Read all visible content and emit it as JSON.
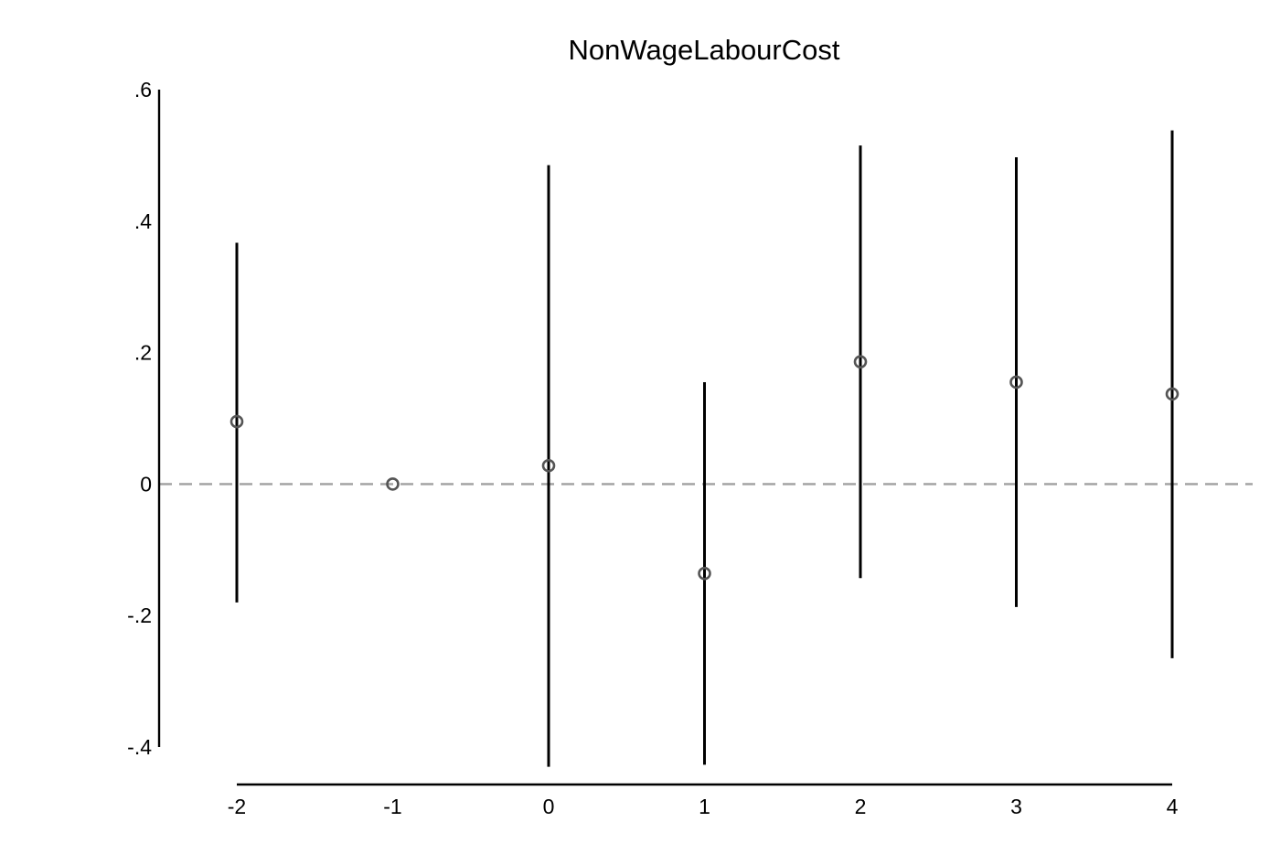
{
  "chart_data": {
    "type": "scatter",
    "subtype": "coefficient-plot-with-confidence-intervals",
    "title": "NonWageLabourCost",
    "xlabel": "",
    "ylabel": "",
    "x": [
      -2,
      -1,
      0,
      1,
      2,
      3,
      4
    ],
    "series": [
      {
        "estimate": [
          0.095,
          0.0,
          0.028,
          -0.136,
          0.186,
          0.155,
          0.137
        ],
        "ci_low": [
          -0.18,
          null,
          -0.43,
          -0.427,
          -0.143,
          -0.187,
          -0.265
        ],
        "ci_high": [
          0.367,
          null,
          0.485,
          0.155,
          0.515,
          0.497,
          0.538
        ]
      }
    ],
    "xticks": [
      "-2",
      "-1",
      "0",
      "1",
      "2",
      "3",
      "4"
    ],
    "yticks": [
      ".6",
      ".4",
      ".2",
      "0",
      "-.2",
      "-.4"
    ],
    "ytick_values": [
      0.6,
      0.4,
      0.2,
      0,
      -0.2,
      -0.4
    ],
    "xlim": [
      -2,
      4
    ],
    "ylim": [
      -0.4,
      0.6
    ],
    "reference_line": {
      "y": 0,
      "style": "dashed",
      "color": "#a0a0a0"
    },
    "grid": false,
    "legend": "none",
    "colors": {
      "ci_line": "#000000",
      "marker": "#555555",
      "axis": "#000000"
    }
  }
}
